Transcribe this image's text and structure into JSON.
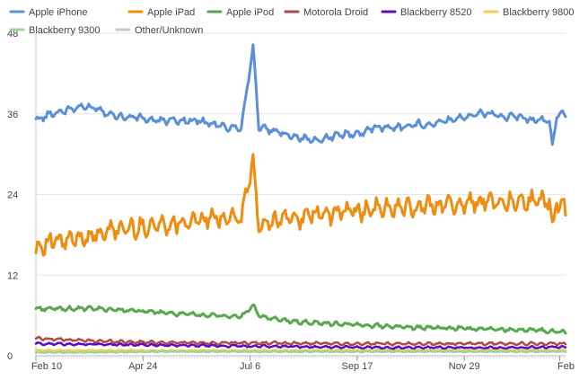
{
  "chart_data": {
    "type": "line",
    "title": "",
    "xlabel": "",
    "ylabel": "",
    "ylim": [
      0,
      48
    ],
    "y_ticks": [
      "0",
      "12",
      "24",
      "36",
      "48"
    ],
    "x_ticks": [
      "Feb 10",
      "Apr 24",
      "Jul 6",
      "Sep 17",
      "Nov 29",
      "Feb"
    ],
    "x_domain": [
      0,
      361
    ],
    "x_tick_days": [
      0,
      73,
      146,
      219,
      292,
      357
    ],
    "grid": "horizontal",
    "legend_position": "top",
    "series": [
      {
        "name": "Apple iPhone",
        "color": "#5b8fd8",
        "x": [
          0,
          10,
          20,
          30,
          40,
          50,
          60,
          70,
          80,
          90,
          100,
          110,
          120,
          130,
          140,
          148,
          152,
          160,
          170,
          180,
          190,
          200,
          210,
          220,
          230,
          240,
          250,
          260,
          270,
          280,
          290,
          300,
          310,
          320,
          330,
          340,
          350,
          352,
          355,
          361
        ],
        "values": [
          35,
          36,
          36.5,
          37,
          37,
          36,
          35.5,
          35.5,
          35,
          35,
          35,
          35,
          34.5,
          34,
          34,
          46,
          34,
          33.5,
          33,
          32.5,
          32,
          32.5,
          33,
          33,
          34,
          34,
          34,
          34.5,
          34.5,
          35,
          35.5,
          36,
          36,
          35.5,
          35.5,
          35,
          35,
          31,
          36,
          36
        ]
      },
      {
        "name": "Apple iPad",
        "color": "#f08c0f",
        "x": [
          0,
          10,
          20,
          30,
          40,
          50,
          60,
          70,
          80,
          90,
          100,
          110,
          120,
          130,
          140,
          148,
          152,
          160,
          170,
          180,
          190,
          200,
          210,
          220,
          230,
          240,
          250,
          260,
          270,
          280,
          290,
          300,
          310,
          320,
          330,
          340,
          350,
          352,
          355,
          361
        ],
        "values": [
          16,
          17,
          17,
          17.5,
          18,
          18.5,
          19,
          19,
          19.5,
          19.5,
          20,
          20,
          20.5,
          20.5,
          20.5,
          29,
          19,
          20,
          20.5,
          20.5,
          21,
          21,
          21.5,
          21.5,
          22,
          22,
          22,
          22,
          22.5,
          22.5,
          22.5,
          23,
          23,
          23,
          23,
          23,
          23,
          19,
          23,
          22
        ]
      },
      {
        "name": "Apple iPod",
        "color": "#58a84e",
        "x": [
          0,
          20,
          40,
          60,
          80,
          100,
          120,
          140,
          148,
          152,
          160,
          180,
          200,
          220,
          240,
          260,
          280,
          300,
          320,
          340,
          361
        ],
        "values": [
          7,
          7,
          7,
          6.8,
          6.5,
          6.2,
          6,
          5.8,
          7.5,
          6,
          5.5,
          5,
          4.8,
          4.6,
          4.4,
          4.2,
          4.1,
          4,
          3.9,
          3.8,
          3.5
        ]
      },
      {
        "name": "Motorola Droid",
        "color": "#b04a44",
        "x": [
          0,
          40,
          80,
          120,
          160,
          200,
          240,
          280,
          320,
          361
        ],
        "values": [
          2.6,
          2.2,
          2,
          1.9,
          1.9,
          1.8,
          1.8,
          1.8,
          1.8,
          1.8
        ]
      },
      {
        "name": "Blackberry 8520",
        "color": "#5a0ec4",
        "x": [
          0,
          40,
          80,
          120,
          160,
          200,
          240,
          280,
          320,
          361
        ],
        "values": [
          1.8,
          1.7,
          1.6,
          1.5,
          1.4,
          1.3,
          1.2,
          1.2,
          1.2,
          1.3
        ]
      },
      {
        "name": "Blackberry 9800",
        "color": "#f2cd5a",
        "x": [
          0,
          40,
          80,
          120,
          160,
          200,
          240,
          280,
          320,
          361
        ],
        "values": [
          0.8,
          0.8,
          0.8,
          0.8,
          0.8,
          0.8,
          0.8,
          0.8,
          0.8,
          0.8
        ]
      },
      {
        "name": "Blackberry 9300",
        "color": "#9ed49a",
        "x": [
          0,
          40,
          80,
          120,
          160,
          200,
          240,
          280,
          320,
          361
        ],
        "values": [
          0.5,
          0.5,
          0.6,
          0.6,
          0.6,
          0.6,
          0.6,
          0.6,
          0.6,
          0.6
        ]
      },
      {
        "name": "Other/Unknown",
        "color": "#c8c8c8",
        "hidden": true,
        "x": [
          0,
          361
        ],
        "values": [
          0,
          0
        ]
      }
    ]
  }
}
